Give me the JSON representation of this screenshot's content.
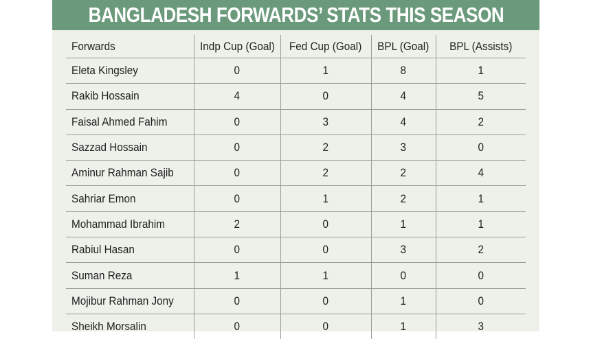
{
  "chart_data": {
    "type": "table",
    "title": "BANGLADESH FORWARDS’ STATS THIS SEASON",
    "columns": [
      "Forwards",
      "Indp Cup (Goal)",
      "Fed Cup (Goal)",
      "BPL (Goal)",
      "BPL (Assists)"
    ],
    "rows": [
      {
        "name": "Eleta Kingsley",
        "indp": "0",
        "fed": "1",
        "bpl": "8",
        "assists": "1"
      },
      {
        "name": "Rakib Hossain",
        "indp": "4",
        "fed": "0",
        "bpl": "4",
        "assists": "5"
      },
      {
        "name": "Faisal Ahmed Fahim",
        "indp": "0",
        "fed": "3",
        "bpl": "4",
        "assists": "2"
      },
      {
        "name": "Sazzad Hossain",
        "indp": "0",
        "fed": "2",
        "bpl": "3",
        "assists": "0"
      },
      {
        "name": "Aminur Rahman Sajib",
        "indp": "0",
        "fed": "2",
        "bpl": "2",
        "assists": "4"
      },
      {
        "name": "Sahriar Emon",
        "indp": "0",
        "fed": "1",
        "bpl": "2",
        "assists": "1"
      },
      {
        "name": "Mohammad Ibrahim",
        "indp": "2",
        "fed": "0",
        "bpl": "1",
        "assists": "1"
      },
      {
        "name": "Rabiul Hasan",
        "indp": "0",
        "fed": "0",
        "bpl": "3",
        "assists": "2"
      },
      {
        "name": "Suman Reza",
        "indp": "1",
        "fed": "1",
        "bpl": "0",
        "assists": "0"
      },
      {
        "name": "Mojibur Rahman Jony",
        "indp": "0",
        "fed": "0",
        "bpl": "1",
        "assists": "0"
      },
      {
        "name": "Sheikh Morsalin",
        "indp": "0",
        "fed": "0",
        "bpl": "1",
        "assists": "3"
      }
    ]
  },
  "colors": {
    "header_bar": "#6a9a7b",
    "card_background": "#edf1e9",
    "text": "#1f1f1f",
    "rule": "#9a9a9a"
  }
}
